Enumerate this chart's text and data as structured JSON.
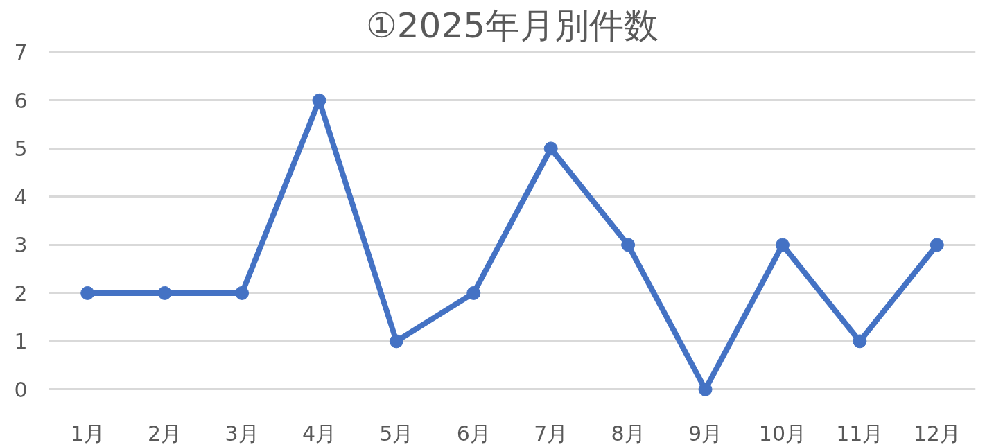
{
  "chart_data": {
    "type": "line",
    "title": "①2025年月別件数",
    "categories": [
      "1月",
      "2月",
      "3月",
      "4月",
      "5月",
      "6月",
      "7月",
      "8月",
      "9月",
      "10月",
      "11月",
      "12月"
    ],
    "series": [
      {
        "color": "#4472c4",
        "values": [
          2,
          2,
          2,
          6,
          1,
          2,
          5,
          3,
          0,
          3,
          1,
          3
        ]
      }
    ],
    "ylim": [
      0,
      7
    ],
    "yticks": [
      0,
      1,
      2,
      3,
      4,
      5,
      6,
      7
    ],
    "grid": "y",
    "marker": "circle",
    "line_style": "solid"
  }
}
